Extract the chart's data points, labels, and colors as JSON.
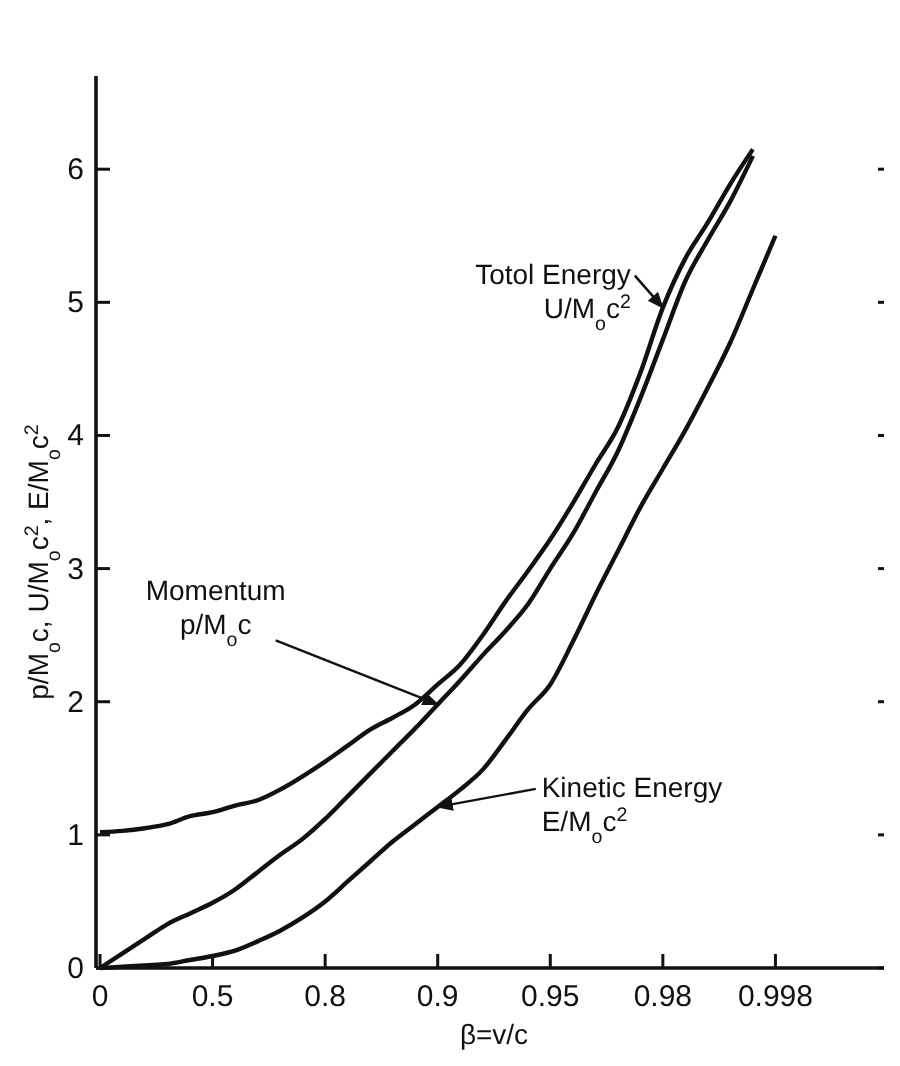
{
  "chart_data": {
    "type": "line",
    "xlabel": "β=v/c",
    "ylabel": "p/M$_{o}$c, U/M$_{o}$c$^{2}$, E/M$_{o}$c$^{2}$",
    "categories": [
      "0",
      null,
      null,
      null,
      null,
      "0.5",
      null,
      null,
      null,
      null,
      "0.8",
      null,
      null,
      null,
      null,
      "0.9",
      null,
      null,
      null,
      null,
      "0.95",
      null,
      null,
      null,
      null,
      "0.98",
      null,
      null,
      null,
      null,
      "0.998",
      null,
      null,
      null,
      null,
      null
    ],
    "ylim": [
      0,
      6.7
    ],
    "yticks": [
      0,
      1,
      2,
      3,
      4,
      5,
      6
    ],
    "grid": false,
    "marker": "none",
    "line_style": "solid",
    "series": [
      {
        "color": "#111111",
        "values": [
          1.02,
          1.03,
          1.05,
          1.08,
          1.14,
          1.17,
          1.22,
          1.26,
          1.34,
          1.44,
          1.55,
          1.67,
          1.79,
          1.88,
          1.98,
          2.13,
          2.28,
          2.5,
          2.75,
          2.98,
          3.22,
          3.49,
          3.78,
          4.06,
          4.47,
          4.96,
          5.33,
          5.6,
          5.89,
          6.15,
          null,
          null,
          null,
          null,
          null,
          null
        ]
      },
      {
        "color": "#111111",
        "values": [
          0,
          0.11,
          0.22,
          0.33,
          0.41,
          0.49,
          0.59,
          0.72,
          0.85,
          0.97,
          1.12,
          1.29,
          1.46,
          1.63,
          1.8,
          1.98,
          2.16,
          2.35,
          2.53,
          2.73,
          3.0,
          3.26,
          3.57,
          3.88,
          4.28,
          4.72,
          5.16,
          5.47,
          5.76,
          6.1,
          null,
          null,
          null,
          null,
          null,
          null
        ]
      },
      {
        "color": "#111111",
        "values": [
          0,
          0.01,
          0.02,
          0.03,
          0.06,
          0.09,
          0.13,
          0.2,
          0.28,
          0.38,
          0.5,
          0.65,
          0.8,
          0.95,
          1.08,
          1.21,
          1.34,
          1.49,
          1.71,
          1.94,
          2.13,
          2.45,
          2.8,
          3.13,
          3.46,
          3.75,
          4.04,
          4.36,
          4.7,
          5.1,
          5.5,
          null,
          null,
          null,
          null,
          null
        ]
      }
    ],
    "annotations": [
      {
        "text": "Totol Energy\nU/M$_{o}$c$^{2}$",
        "x": "0.98",
        "y": 4.96
      },
      {
        "text": "Momentum\np/M$_{o}$c",
        "x": "0.9",
        "y": 1.98
      },
      {
        "text": "Kinetic Energy\nE/M$_{o}$c$^{2}$",
        "x": "0.9",
        "y": 1.21
      }
    ]
  }
}
